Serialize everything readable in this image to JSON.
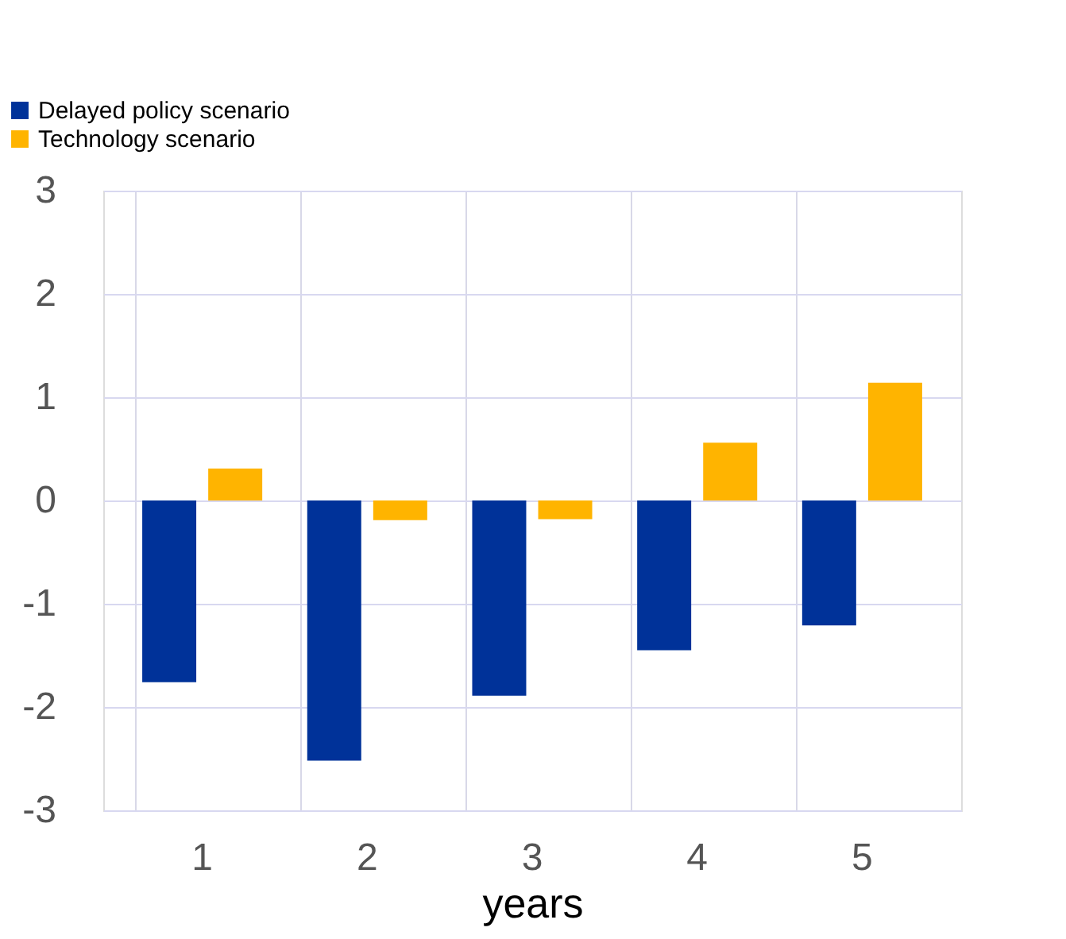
{
  "chart_data": {
    "type": "bar",
    "xlabel": "years",
    "categories": [
      "1",
      "2",
      "3",
      "4",
      "5"
    ],
    "series": [
      {
        "name": "Delayed policy scenario",
        "color": "#003299",
        "values": [
          -1.76,
          -2.52,
          -1.89,
          -1.45,
          -1.21
        ]
      },
      {
        "name": "Technology scenario",
        "color": "#ffb400",
        "values": [
          0.31,
          -0.19,
          -0.18,
          0.56,
          1.14
        ]
      }
    ],
    "ylim": [
      -3,
      3
    ],
    "yticks": [
      -3,
      -2,
      -1,
      0,
      1,
      2,
      3
    ],
    "grid": true,
    "legend": "top left"
  }
}
